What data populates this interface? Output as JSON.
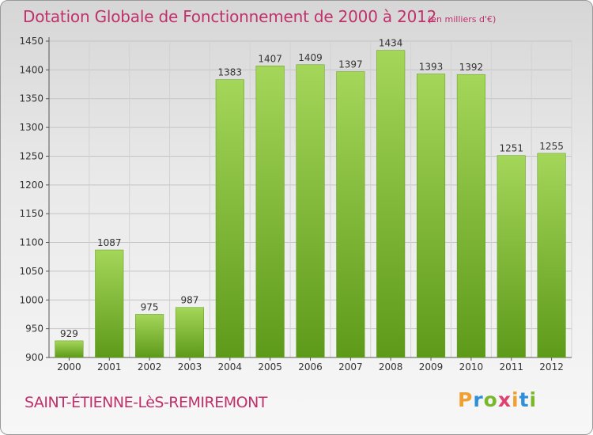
{
  "header": {
    "title": "Dotation Globale de Fonctionnement de 2000 à 2012",
    "unit": "(en milliers d'€)"
  },
  "footer": {
    "commune": "SAINT-ÉTIENNE-LèS-REMIREMONT",
    "logo": [
      "P",
      "r",
      "o",
      "x",
      "i",
      "t",
      "i"
    ],
    "logo_colors": [
      "#f0a030",
      "#2f8fd8",
      "#78b82a",
      "#e04070",
      "#f0a030",
      "#2f8fd8",
      "#78b82a"
    ]
  },
  "chart_data": {
    "type": "bar",
    "title": "Dotation Globale de Fonctionnement de 2000 à 2012",
    "subtitle": "(en milliers d'€)",
    "xlabel": "",
    "ylabel": "",
    "categories": [
      "2000",
      "2001",
      "2002",
      "2003",
      "2004",
      "2005",
      "2006",
      "2007",
      "2008",
      "2009",
      "2010",
      "2011",
      "2012"
    ],
    "values": [
      929,
      1087,
      975,
      987,
      1383,
      1407,
      1409,
      1397,
      1434,
      1393,
      1392,
      1251,
      1255
    ],
    "ylim": [
      900,
      1450
    ],
    "yticks": [
      "900",
      "950",
      "1000",
      "1050",
      "1100",
      "1150",
      "1200",
      "1250",
      "1300",
      "1350",
      "1400",
      "1450"
    ],
    "grid": true,
    "legend": "none",
    "bar_color": "#8cc63f"
  }
}
